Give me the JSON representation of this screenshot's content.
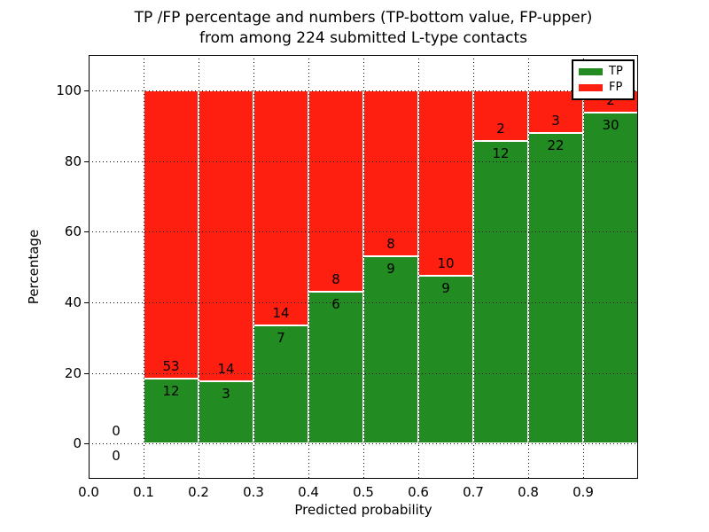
{
  "figure": {
    "background": "#ffffff"
  },
  "chart_data": {
    "type": "bar",
    "stacked": true,
    "title": "TP /FP percentage and numbers (TP-bottom value, FP-upper)\nfrom among 224 submitted L-type contacts",
    "title_line1": "TP /FP percentage and numbers (TP-bottom value, FP-upper)",
    "title_line2": "from among 224 submitted L-type contacts",
    "xlabel": "Predicted probability",
    "ylabel": "Percentage",
    "xlim": [
      0.0,
      1.0
    ],
    "ylim": [
      -10,
      110
    ],
    "x_tick_values": [
      0.0,
      0.1,
      0.2,
      0.3,
      0.4,
      0.5,
      0.6,
      0.7,
      0.8,
      0.9
    ],
    "x_tick_labels": [
      "0.0",
      "0.1",
      "0.2",
      "0.3",
      "0.4",
      "0.5",
      "0.6",
      "0.7",
      "0.8",
      "0.9"
    ],
    "y_tick_values": [
      0,
      20,
      40,
      60,
      80,
      100
    ],
    "y_tick_labels": [
      "0",
      "20",
      "40",
      "60",
      "80",
      "100"
    ],
    "grid": {
      "style": "dotted",
      "color": "#000000",
      "drawn_over_bars": true
    },
    "bin_starts": [
      0.0,
      0.1,
      0.2,
      0.3,
      0.4,
      0.5,
      0.6,
      0.7,
      0.8,
      0.9
    ],
    "bin_width": 0.1,
    "bar_edge_color": "#ffffff",
    "series": [
      {
        "name": "TP",
        "color": "#228B22",
        "counts": [
          0,
          12,
          3,
          7,
          6,
          9,
          9,
          12,
          22,
          30
        ],
        "percentages": [
          0,
          18.46,
          17.65,
          33.33,
          42.86,
          52.94,
          47.37,
          85.71,
          88.0,
          93.75
        ]
      },
      {
        "name": "FP",
        "color": "#FF1F10",
        "counts": [
          0,
          53,
          14,
          14,
          8,
          8,
          10,
          2,
          3,
          2
        ],
        "percentages": [
          0,
          81.54,
          82.35,
          66.67,
          57.14,
          47.06,
          52.63,
          14.29,
          12.0,
          6.25
        ]
      }
    ],
    "legend": {
      "position": "upper-right",
      "entries": [
        {
          "label": "TP",
          "color": "#228B22"
        },
        {
          "label": "FP",
          "color": "#FF1F10"
        }
      ]
    },
    "total_contacts": 224
  }
}
